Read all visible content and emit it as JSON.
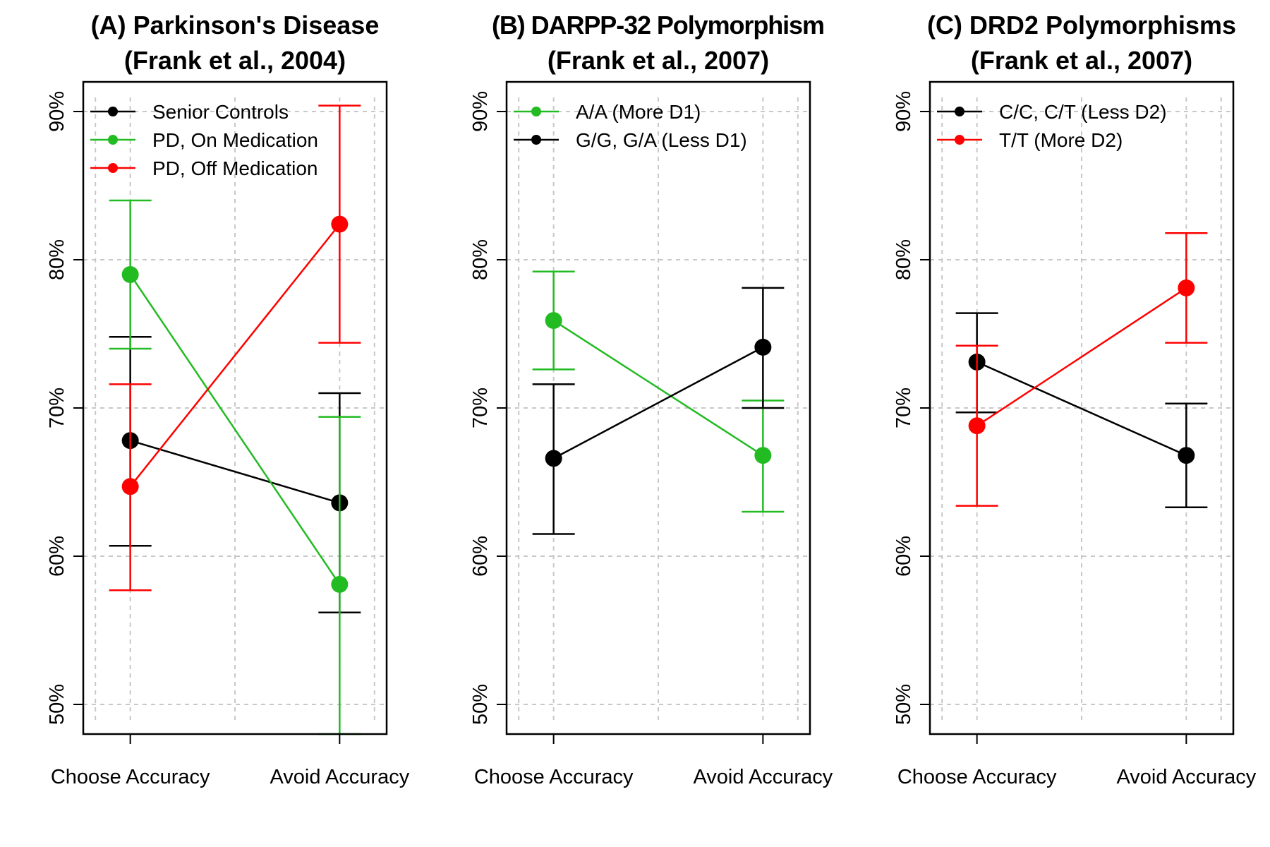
{
  "chart_data": [
    {
      "type": "line",
      "title": "(A) Parkinson's Disease",
      "subtitle": "(Frank et al., 2004)",
      "categories": [
        "Choose Accuracy",
        "Avoid Accuracy"
      ],
      "yticks": [
        "50%",
        "60%",
        "70%",
        "80%",
        "90%"
      ],
      "ylim": [
        0.48,
        0.92
      ],
      "grid": true,
      "legend_position": "top-left",
      "series": [
        {
          "name": "Senior Controls",
          "color": "#000000",
          "values": [
            0.678,
            0.636
          ],
          "error_lower": [
            0.607,
            0.562
          ],
          "error_upper": [
            0.748,
            0.71
          ]
        },
        {
          "name": "PD, On Medication",
          "color": "#22bb22",
          "values": [
            0.79,
            0.581
          ],
          "error_lower": [
            0.74,
            0.48
          ],
          "error_upper": [
            0.84,
            0.694
          ]
        },
        {
          "name": "PD, Off Medication",
          "color": "#ff0000",
          "values": [
            0.647,
            0.824
          ],
          "error_lower": [
            0.577,
            0.744
          ],
          "error_upper": [
            0.716,
            0.904
          ]
        }
      ]
    },
    {
      "type": "line",
      "title": "(B) DARPP-32 Polymorphism",
      "subtitle": "(Frank et al., 2007)",
      "categories": [
        "Choose Accuracy",
        "Avoid Accuracy"
      ],
      "yticks": [
        "50%",
        "60%",
        "70%",
        "80%",
        "90%"
      ],
      "ylim": [
        0.48,
        0.92
      ],
      "grid": true,
      "legend_position": "top-left",
      "series": [
        {
          "name": "A/A (More D1)",
          "color": "#22bb22",
          "values": [
            0.759,
            0.668
          ],
          "error_lower": [
            0.726,
            0.63
          ],
          "error_upper": [
            0.792,
            0.705
          ]
        },
        {
          "name": "G/G, G/A (Less D1)",
          "color": "#000000",
          "values": [
            0.666,
            0.741
          ],
          "error_lower": [
            0.615,
            0.7
          ],
          "error_upper": [
            0.716,
            0.781
          ]
        }
      ]
    },
    {
      "type": "line",
      "title": "(C) DRD2 Polymorphisms",
      "subtitle": "(Frank et al., 2007)",
      "categories": [
        "Choose Accuracy",
        "Avoid Accuracy"
      ],
      "yticks": [
        "50%",
        "60%",
        "70%",
        "80%",
        "90%"
      ],
      "ylim": [
        0.48,
        0.92
      ],
      "grid": true,
      "legend_position": "top-left",
      "series": [
        {
          "name": "C/C, C/T (Less D2)",
          "color": "#000000",
          "values": [
            0.731,
            0.668
          ],
          "error_lower": [
            0.697,
            0.633
          ],
          "error_upper": [
            0.764,
            0.703
          ]
        },
        {
          "name": "T/T (More D2)",
          "color": "#ff0000",
          "values": [
            0.688,
            0.781
          ],
          "error_lower": [
            0.634,
            0.744
          ],
          "error_upper": [
            0.742,
            0.818
          ]
        }
      ]
    }
  ]
}
